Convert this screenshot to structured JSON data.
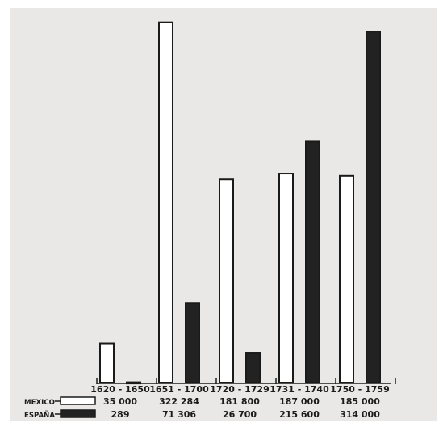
{
  "chart_data": {
    "type": "bar",
    "title": "",
    "xlabel": "",
    "ylabel": "",
    "categories": [
      "1620 - 1650",
      "1651 - 1700",
      "1720 - 1729",
      "1731 - 1740",
      "1750 - 1759"
    ],
    "series": [
      {
        "name": "MEXICO",
        "values": [
          35000,
          322284,
          181800,
          187000,
          185000
        ],
        "value_labels": [
          "35 000",
          "322 284",
          "181 800",
          "187 000",
          "185 000"
        ],
        "fill": "#ffffff",
        "stroke": "#1a1a1a"
      },
      {
        "name": "ESPAÑA",
        "values": [
          289,
          71306,
          26700,
          215600,
          314000
        ],
        "value_labels": [
          "289",
          "71 306",
          "26 700",
          "215 600",
          "314 000"
        ],
        "fill": "#222222",
        "stroke": "#1a1a1a"
      }
    ],
    "ylim": [
      0,
      330000
    ],
    "y_axis_visible": false,
    "grid": false,
    "legend": "bottom-left, aligned with value rows"
  }
}
